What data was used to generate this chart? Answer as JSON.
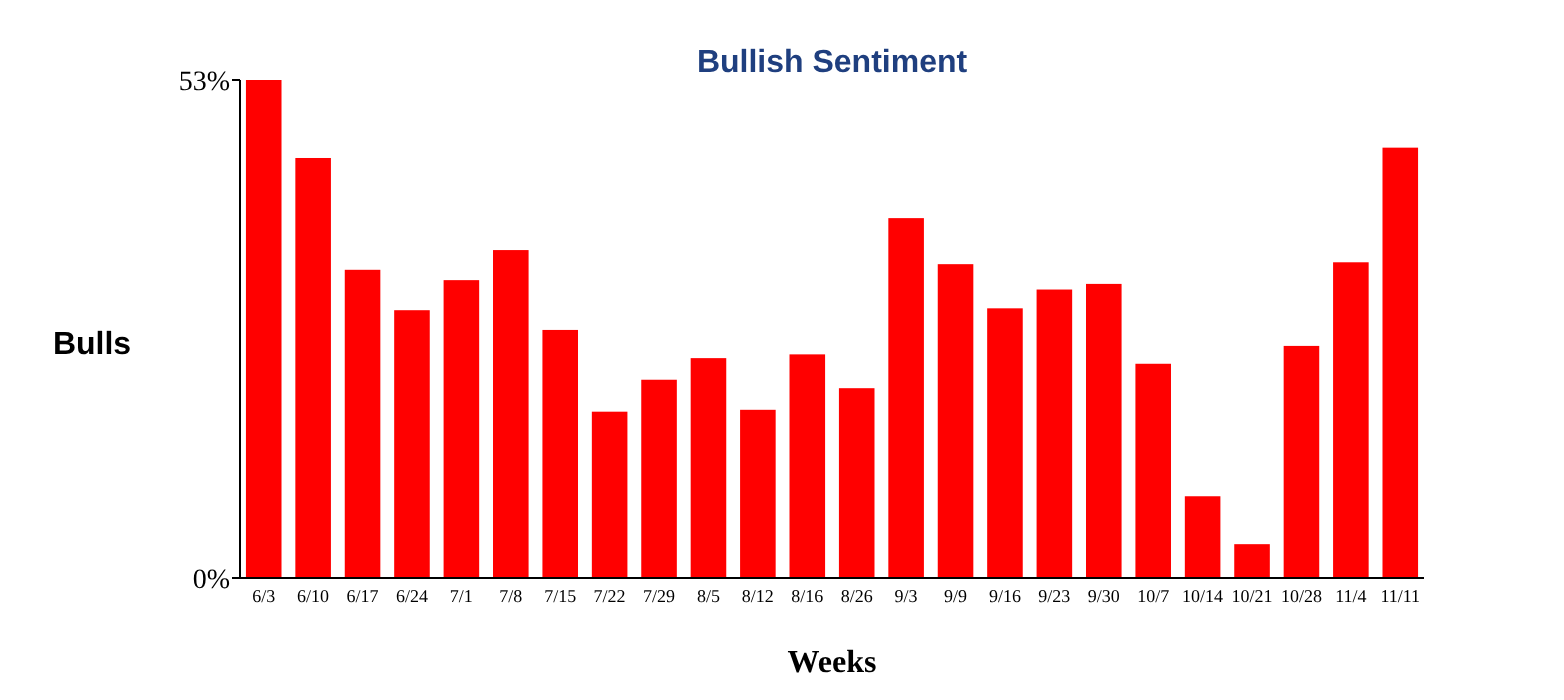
{
  "chart_data": {
    "type": "bar",
    "title": "Bullish Sentiment",
    "xlabel": "Weeks",
    "ylabel": "Bulls",
    "categories": [
      "6/3",
      "6/10",
      "6/17",
      "6/24",
      "7/1",
      "7/8",
      "7/15",
      "7/22",
      "7/29",
      "8/5",
      "8/12",
      "8/16",
      "8/26",
      "9/3",
      "9/9",
      "9/16",
      "9/23",
      "9/30",
      "10/7",
      "10/14",
      "10/21",
      "10/28",
      "11/4",
      "11/11"
    ],
    "values": [
      53,
      44.7,
      32.8,
      28.5,
      31.7,
      34.9,
      26.4,
      17.7,
      21.1,
      23.4,
      17.9,
      23.8,
      20.2,
      38.3,
      33.4,
      28.7,
      30.7,
      31.3,
      22.8,
      8.7,
      3.6,
      24.7,
      33.6,
      45.8
    ],
    "color": "#ff0000",
    "ylim": [
      0,
      53
    ],
    "yticks": [
      {
        "value": 0,
        "label": "0%"
      },
      {
        "value": 53,
        "label": "53%"
      }
    ],
    "grid": false
  }
}
